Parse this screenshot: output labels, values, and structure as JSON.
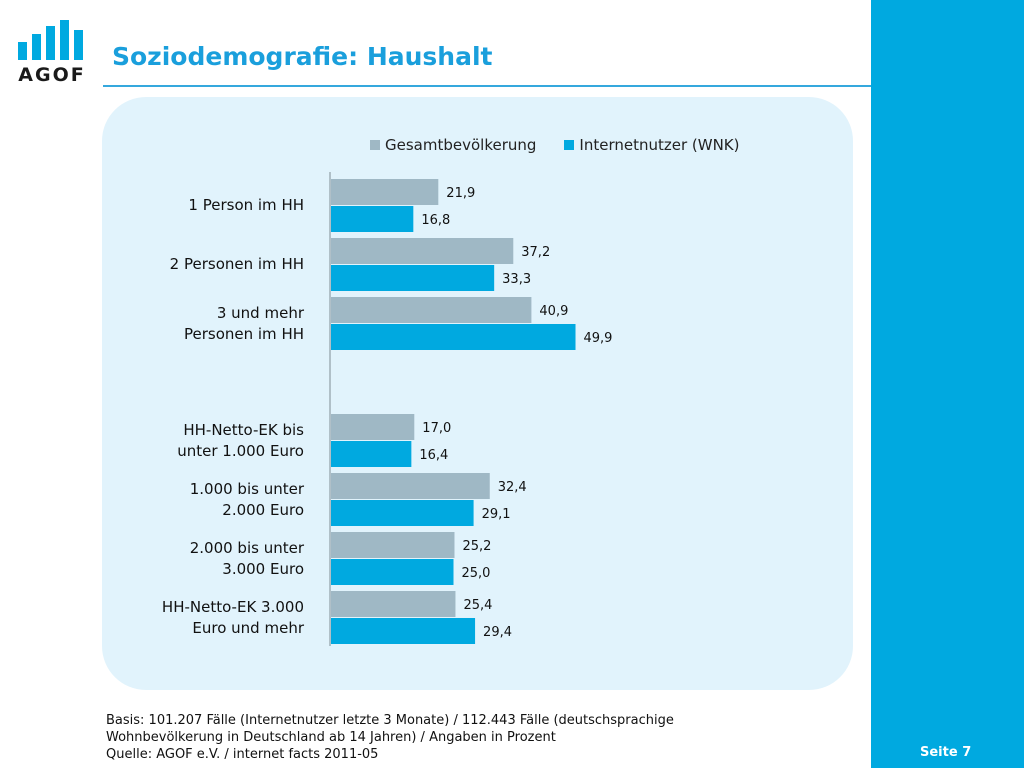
{
  "header": {
    "logo_text": "AGOF",
    "title": "Soziodemografie: Haushalt"
  },
  "colors": {
    "accent": "#00a9e0",
    "title": "#1a9fdc",
    "panel": "#e1f3fc",
    "series_gesamt": "#9fb8c5",
    "series_internet": "#00a9e0"
  },
  "chart_data": {
    "type": "bar",
    "orientation": "horizontal",
    "legend_position": "top",
    "grid": false,
    "xlim": [
      0,
      100
    ],
    "categories": [
      "1 Person im HH",
      "2 Personen im HH",
      "3 und mehr Personen im HH",
      "HH-Netto-EK bis unter 1.000 Euro",
      "1.000 bis unter 2.000 Euro",
      "2.000 bis unter 3.000 Euro",
      "HH-Netto-EK 3.000 Euro und mehr"
    ],
    "category_lines": [
      [
        "1 Person im HH"
      ],
      [
        "2 Personen im HH"
      ],
      [
        "3 und mehr",
        "Personen im HH"
      ],
      [
        "HH-Netto-EK bis",
        "unter 1.000 Euro"
      ],
      [
        "1.000 bis unter",
        "2.000 Euro"
      ],
      [
        "2.000 bis unter",
        "3.000 Euro"
      ],
      [
        "HH-Netto-EK 3.000",
        "Euro und mehr"
      ]
    ],
    "series": [
      {
        "name": "Gesamtbevölkerung",
        "values": [
          21.9,
          37.2,
          40.9,
          17.0,
          32.4,
          25.2,
          25.4
        ],
        "labels": [
          "21,9",
          "37,2",
          "40,9",
          "17,0",
          "32,4",
          "25,2",
          "25,4"
        ]
      },
      {
        "name": "Internetnutzer (WNK)",
        "values": [
          16.8,
          33.3,
          49.9,
          16.4,
          29.1,
          25.0,
          29.4
        ],
        "labels": [
          "16,8",
          "33,3",
          "49,9",
          "16,4",
          "29,1",
          "25,0",
          "29,4"
        ]
      }
    ]
  },
  "footer": {
    "line1": "Basis: 101.207 Fälle (Internetnutzer letzte 3 Monate) / 112.443 Fälle (deutschsprachige",
    "line2": "Wohnbevölkerung in Deutschland ab 14 Jahren) / Angaben in Prozent",
    "line3": "Quelle: AGOF e.V. / internet facts 2011-05"
  },
  "page": {
    "number_label": "Seite 7"
  }
}
